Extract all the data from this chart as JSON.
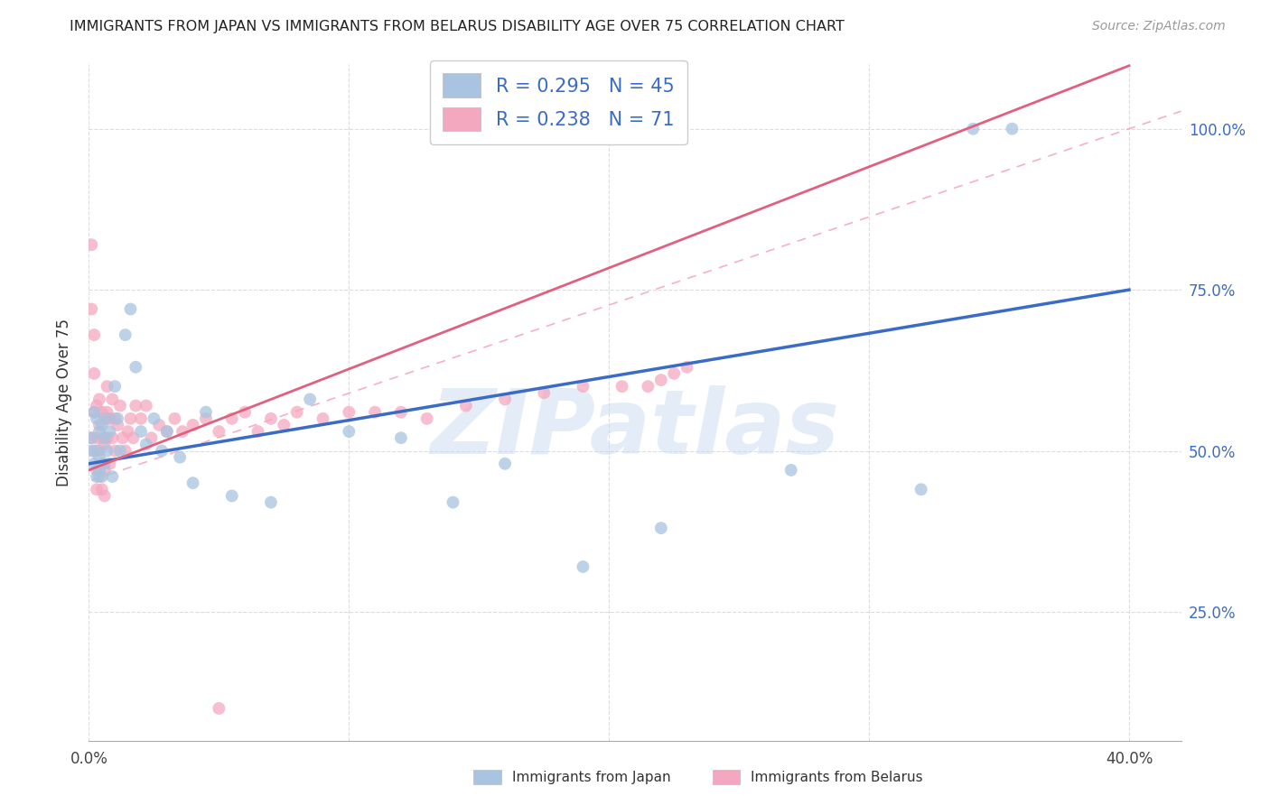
{
  "title": "IMMIGRANTS FROM JAPAN VS IMMIGRANTS FROM BELARUS DISABILITY AGE OVER 75 CORRELATION CHART",
  "source": "Source: ZipAtlas.com",
  "ylabel": "Disability Age Over 75",
  "xlim": [
    0.0,
    0.42
  ],
  "ylim": [
    0.05,
    1.1
  ],
  "japan_color": "#a8c4e0",
  "belarus_color": "#f4a8c0",
  "japan_R": 0.295,
  "japan_N": 45,
  "belarus_R": 0.238,
  "belarus_N": 71,
  "regression_japan_color": "#3b6cc5",
  "regression_belarus_color": "#e06080",
  "legend_text_color": "#3b6cc5",
  "right_axis_color": "#3b6cc5",
  "grid_color": "#dddddd",
  "watermark_text": "ZIPatlas",
  "watermark_color": "#c5d9ef",
  "x_tick_positions": [
    0.0,
    0.1,
    0.2,
    0.3,
    0.4
  ],
  "x_tick_labels": [
    "0.0%",
    "",
    "",
    "",
    "40.0%"
  ],
  "y_tick_positions": [
    0.25,
    0.5,
    0.75,
    1.0
  ],
  "y_tick_labels_right": [
    "25.0%",
    "50.0%",
    "75.0%",
    "100.0%"
  ],
  "bottom_legend_japan": "Immigrants from Japan",
  "bottom_legend_belarus": "Immigrants from Belarus",
  "japan_x": [
    0.001,
    0.001,
    0.002,
    0.002,
    0.003,
    0.003,
    0.003,
    0.004,
    0.004,
    0.004,
    0.005,
    0.005,
    0.006,
    0.006,
    0.007,
    0.007,
    0.008,
    0.009,
    0.01,
    0.011,
    0.012,
    0.014,
    0.016,
    0.018,
    0.02,
    0.022,
    0.025,
    0.028,
    0.03,
    0.035,
    0.04,
    0.045,
    0.055,
    0.07,
    0.085,
    0.1,
    0.12,
    0.14,
    0.16,
    0.19,
    0.22,
    0.27,
    0.32,
    0.34,
    0.355
  ],
  "japan_y": [
    0.52,
    0.5,
    0.56,
    0.48,
    0.55,
    0.5,
    0.46,
    0.53,
    0.49,
    0.47,
    0.54,
    0.46,
    0.52,
    0.48,
    0.55,
    0.5,
    0.53,
    0.46,
    0.6,
    0.55,
    0.5,
    0.68,
    0.72,
    0.63,
    0.53,
    0.51,
    0.55,
    0.5,
    0.53,
    0.49,
    0.45,
    0.56,
    0.43,
    0.42,
    0.58,
    0.53,
    0.52,
    0.42,
    0.48,
    0.32,
    0.38,
    0.47,
    0.44,
    1.0,
    1.0
  ],
  "belarus_x": [
    0.001,
    0.001,
    0.001,
    0.002,
    0.002,
    0.002,
    0.002,
    0.003,
    0.003,
    0.003,
    0.003,
    0.004,
    0.004,
    0.004,
    0.004,
    0.005,
    0.005,
    0.005,
    0.005,
    0.006,
    0.006,
    0.006,
    0.006,
    0.007,
    0.007,
    0.007,
    0.008,
    0.008,
    0.009,
    0.009,
    0.01,
    0.01,
    0.011,
    0.012,
    0.013,
    0.014,
    0.015,
    0.016,
    0.017,
    0.018,
    0.02,
    0.022,
    0.024,
    0.027,
    0.03,
    0.033,
    0.036,
    0.04,
    0.045,
    0.05,
    0.055,
    0.06,
    0.065,
    0.07,
    0.075,
    0.08,
    0.09,
    0.1,
    0.11,
    0.12,
    0.13,
    0.145,
    0.16,
    0.175,
    0.19,
    0.205,
    0.215,
    0.22,
    0.225,
    0.23,
    0.05
  ],
  "belarus_y": [
    0.52,
    0.82,
    0.72,
    0.68,
    0.62,
    0.56,
    0.5,
    0.57,
    0.52,
    0.47,
    0.44,
    0.58,
    0.54,
    0.5,
    0.46,
    0.56,
    0.52,
    0.48,
    0.44,
    0.55,
    0.51,
    0.47,
    0.43,
    0.6,
    0.56,
    0.52,
    0.55,
    0.48,
    0.58,
    0.52,
    0.55,
    0.5,
    0.54,
    0.57,
    0.52,
    0.5,
    0.53,
    0.55,
    0.52,
    0.57,
    0.55,
    0.57,
    0.52,
    0.54,
    0.53,
    0.55,
    0.53,
    0.54,
    0.55,
    0.53,
    0.55,
    0.56,
    0.53,
    0.55,
    0.54,
    0.56,
    0.55,
    0.56,
    0.56,
    0.56,
    0.55,
    0.57,
    0.58,
    0.59,
    0.6,
    0.6,
    0.6,
    0.61,
    0.62,
    0.63,
    0.1
  ]
}
